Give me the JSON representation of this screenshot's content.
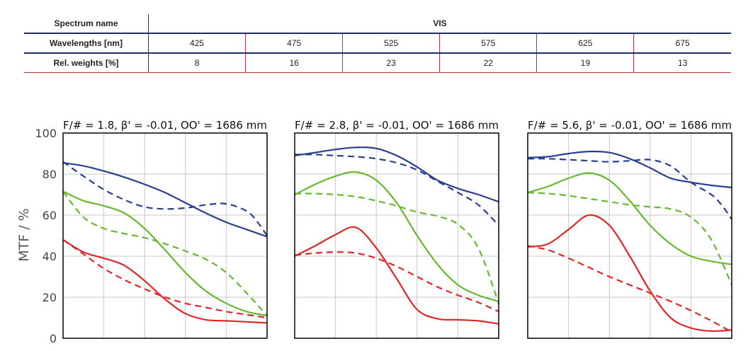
{
  "table": {
    "spectrum_label": "Spectrum name",
    "spectrum_value": "VIS",
    "wavelength_label": "Wavelengths [nm]",
    "wavelengths": [
      "425",
      "475",
      "525",
      "575",
      "625",
      "675"
    ],
    "weights_label": "Rel. weights [%]",
    "weights": [
      "8",
      "16",
      "23",
      "22",
      "19",
      "13"
    ]
  },
  "chart_data": {
    "type": "line",
    "ylabel": "MTF / %",
    "ylim": [
      0,
      100
    ],
    "y_ticks": [
      0,
      20,
      40,
      60,
      80,
      100
    ],
    "x_range": [
      0,
      1
    ],
    "grid": true,
    "colors": {
      "blue": "#283f91",
      "green": "#66b82e",
      "red": "#e02626",
      "grid": "#c8c8c8"
    },
    "panels": [
      {
        "title": "F/# = 1.8, β' = -0.01, OO' = 1686 mm",
        "series": [
          {
            "color": "blue",
            "style": "solid",
            "x": [
              0,
              0.1,
              0.2,
              0.3,
              0.4,
              0.5,
              0.6,
              0.7,
              0.8,
              0.9,
              1.0
            ],
            "y": [
              85.5,
              84,
              81.5,
              78.5,
              75,
              71,
              66,
              61,
              56.5,
              53,
              49.5
            ]
          },
          {
            "color": "blue",
            "style": "dashed",
            "x": [
              0,
              0.1,
              0.2,
              0.3,
              0.4,
              0.5,
              0.6,
              0.7,
              0.8,
              0.9,
              0.95,
              1.0
            ],
            "y": [
              86,
              79,
              72.5,
              67.5,
              64,
              63,
              63.5,
              65,
              65.5,
              62,
              57,
              50
            ]
          },
          {
            "color": "green",
            "style": "solid",
            "x": [
              0,
              0.1,
              0.2,
              0.3,
              0.4,
              0.5,
              0.6,
              0.7,
              0.8,
              0.9,
              1.0
            ],
            "y": [
              71.5,
              67,
              64.5,
              61,
              53.5,
              43,
              32,
              23,
              17,
              13,
              11
            ]
          },
          {
            "color": "green",
            "style": "dashed",
            "x": [
              0,
              0.1,
              0.2,
              0.3,
              0.4,
              0.5,
              0.6,
              0.7,
              0.8,
              0.9,
              1.0
            ],
            "y": [
              71.5,
              59,
              53.5,
              51,
              49,
              46,
              42.5,
              38.5,
              32,
              22,
              11
            ]
          },
          {
            "color": "red",
            "style": "solid",
            "x": [
              0,
              0.1,
              0.2,
              0.3,
              0.4,
              0.5,
              0.6,
              0.7,
              0.8,
              0.9,
              1.0
            ],
            "y": [
              48,
              42,
              39,
              35.5,
              28,
              19,
              12,
              9,
              8.5,
              8,
              7.5
            ]
          },
          {
            "color": "red",
            "style": "dashed",
            "x": [
              0,
              0.1,
              0.2,
              0.3,
              0.4,
              0.5,
              0.6,
              0.7,
              0.8,
              0.9,
              1.0
            ],
            "y": [
              48,
              41,
              34,
              28.5,
              24,
              20,
              17,
              15,
              13,
              11.5,
              10
            ]
          }
        ]
      },
      {
        "title": "F/# = 2.8, β' = -0.01, OO' = 1686 mm",
        "series": [
          {
            "color": "blue",
            "style": "solid",
            "x": [
              0,
              0.1,
              0.2,
              0.3,
              0.4,
              0.5,
              0.6,
              0.7,
              0.8,
              0.9,
              1.0
            ],
            "y": [
              89,
              90.5,
              92,
              93,
              92.5,
              89,
              83.5,
              77,
              73,
              70,
              66.5
            ]
          },
          {
            "color": "blue",
            "style": "dashed",
            "x": [
              0,
              0.1,
              0.2,
              0.3,
              0.4,
              0.5,
              0.6,
              0.7,
              0.8,
              0.9,
              1.0
            ],
            "y": [
              89.5,
              89.5,
              89,
              88.5,
              87.5,
              85.5,
              82,
              76.5,
              71,
              65,
              55
            ]
          },
          {
            "color": "green",
            "style": "solid",
            "x": [
              0,
              0.1,
              0.2,
              0.3,
              0.4,
              0.5,
              0.6,
              0.7,
              0.8,
              0.9,
              1.0
            ],
            "y": [
              70,
              75,
              79,
              81,
              77,
              66,
              50,
              36,
              26,
              21,
              18
            ]
          },
          {
            "color": "green",
            "style": "dashed",
            "x": [
              0,
              0.1,
              0.2,
              0.3,
              0.4,
              0.5,
              0.6,
              0.7,
              0.8,
              0.9,
              1.0
            ],
            "y": [
              70.5,
              70.5,
              70,
              69,
              67,
              64.5,
              61.5,
              59.5,
              55.5,
              44,
              17
            ]
          },
          {
            "color": "red",
            "style": "solid",
            "x": [
              0,
              0.1,
              0.2,
              0.3,
              0.4,
              0.5,
              0.6,
              0.7,
              0.8,
              0.9,
              1.0
            ],
            "y": [
              40,
              45,
              50.5,
              54,
              44,
              29,
              14,
              9.5,
              9,
              8.5,
              7
            ]
          },
          {
            "color": "red",
            "style": "dashed",
            "x": [
              0,
              0.1,
              0.2,
              0.3,
              0.4,
              0.5,
              0.6,
              0.7,
              0.8,
              0.9,
              1.0
            ],
            "y": [
              40.5,
              41.5,
              42,
              41.5,
              39,
              35,
              30,
              25,
              21,
              17.5,
              13
            ]
          }
        ]
      },
      {
        "title": "F/# = 5.6, β' = -0.01, OO' = 1686 mm",
        "series": [
          {
            "color": "blue",
            "style": "solid",
            "x": [
              0,
              0.1,
              0.2,
              0.3,
              0.4,
              0.5,
              0.6,
              0.7,
              0.8,
              0.9,
              1.0
            ],
            "y": [
              88,
              88.5,
              90,
              91,
              90.5,
              87.5,
              83,
              78,
              76,
              74.5,
              73.5
            ]
          },
          {
            "color": "blue",
            "style": "dashed",
            "x": [
              0,
              0.1,
              0.2,
              0.3,
              0.4,
              0.5,
              0.6,
              0.7,
              0.8,
              0.9,
              0.95,
              1.0
            ],
            "y": [
              87.5,
              87.5,
              87,
              86.5,
              86,
              86.5,
              87,
              84,
              76,
              70,
              65,
              58
            ]
          },
          {
            "color": "green",
            "style": "solid",
            "x": [
              0,
              0.1,
              0.2,
              0.3,
              0.4,
              0.5,
              0.6,
              0.7,
              0.8,
              0.9,
              1.0
            ],
            "y": [
              71,
              74,
              78,
              80.5,
              77,
              67,
              55,
              46,
              40,
              37.5,
              36
            ]
          },
          {
            "color": "green",
            "style": "dashed",
            "x": [
              0,
              0.1,
              0.2,
              0.3,
              0.4,
              0.5,
              0.6,
              0.7,
              0.8,
              0.9,
              1.0
            ],
            "y": [
              71,
              70.5,
              69.5,
              68,
              66.5,
              65,
              64,
              63,
              59,
              48,
              26
            ]
          },
          {
            "color": "red",
            "style": "solid",
            "x": [
              0,
              0.1,
              0.2,
              0.3,
              0.4,
              0.5,
              0.6,
              0.7,
              0.8,
              0.9,
              1.0
            ],
            "y": [
              44.5,
              46,
              53,
              60,
              55,
              40,
              23,
              10,
              5,
              3.5,
              4
            ]
          },
          {
            "color": "red",
            "style": "dashed",
            "x": [
              0,
              0.1,
              0.2,
              0.3,
              0.4,
              0.5,
              0.6,
              0.7,
              0.8,
              0.9,
              1.0
            ],
            "y": [
              45,
              43,
              39,
              34.5,
              30,
              26,
              22,
              18,
              13.5,
              8.5,
              3
            ]
          }
        ]
      }
    ]
  }
}
